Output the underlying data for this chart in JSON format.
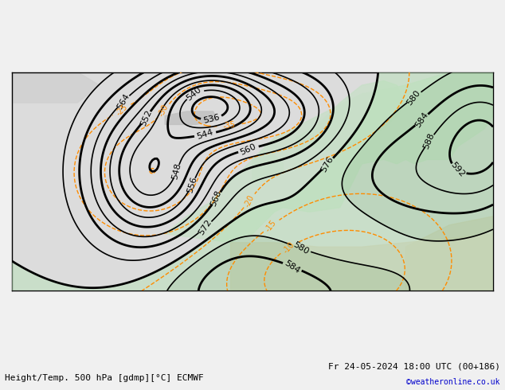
{
  "title_left": "Height/Temp. 500 hPa [gdmp][°C] ECMWF",
  "title_right": "Fr 24-05-2024 18:00 UTC (00+186)",
  "credit": "©weatheronline.co.uk",
  "bg_color": "#e8e8e8",
  "land_color_light": "#c8e6c8",
  "land_color_gray": "#b0b0b0",
  "sea_color": "#dcdcdc",
  "contour_color_z500": "#000000",
  "contour_color_temp_neg": "#ff8c00",
  "contour_color_temp_pos": "#00bcd4",
  "contour_color_temp_pos2": "#66bb6a",
  "font_size_labels": 7,
  "font_size_title": 8,
  "xlim": [
    -60,
    50
  ],
  "ylim": [
    25,
    75
  ]
}
